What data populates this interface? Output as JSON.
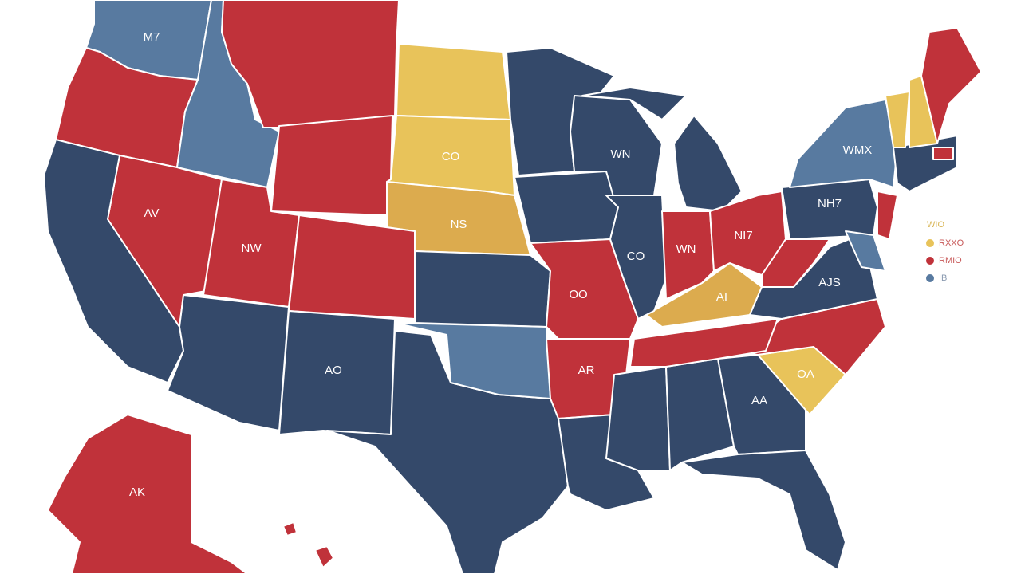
{
  "map": {
    "state_labels": [
      "M7",
      "AV",
      "NW",
      "CO",
      "NS",
      "WN",
      "CO",
      "OO",
      "AR",
      "AO",
      "AK",
      "AA",
      "WN",
      "NI7",
      "NH7",
      "WMX",
      "AJS",
      "AI",
      "OA"
    ],
    "legend": {
      "title": "WIO",
      "items": [
        "RXXO",
        "RMIO",
        "IB"
      ]
    }
  }
}
